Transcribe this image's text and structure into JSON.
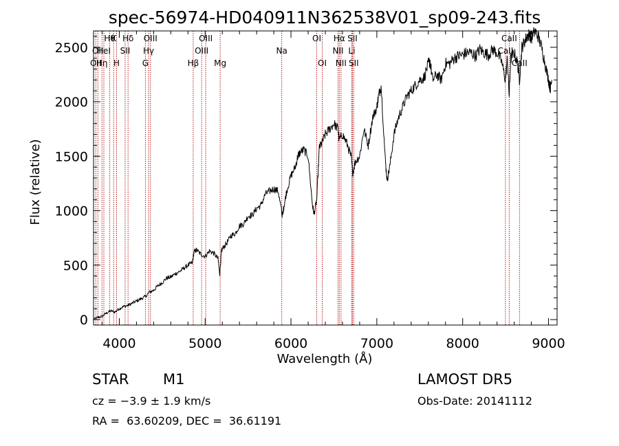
{
  "chart_data": {
    "type": "line",
    "title": "spec-56974-HD040911N362538V01_sp09-243.fits",
    "xlabel": "Wavelength (Å)",
    "ylabel": "Flux (relative)",
    "xlim": [
      3700,
      9100
    ],
    "ylim": [
      -50,
      2650
    ],
    "xticks": [
      4000,
      5000,
      6000,
      7000,
      8000,
      9000
    ],
    "yticks": [
      0,
      500,
      1000,
      1500,
      2000,
      2500
    ],
    "grid": false,
    "series": [
      {
        "x": [
          3700,
          3750,
          3800,
          3850,
          3900,
          3950,
          4000,
          4050,
          4100,
          4150,
          4200,
          4250,
          4300,
          4350,
          4400,
          4450,
          4500,
          4550,
          4600,
          4650,
          4700,
          4750,
          4800,
          4850,
          4870,
          4900,
          4950,
          5000,
          5050,
          5100,
          5150,
          5170,
          5190,
          5200,
          5250,
          5300,
          5350,
          5400,
          5450,
          5500,
          5550,
          5600,
          5650,
          5700,
          5750,
          5800,
          5850,
          5890,
          5900,
          5920,
          5950,
          6000,
          6050,
          6080,
          6100,
          6150,
          6200,
          6250,
          6270,
          6300,
          6330,
          6360,
          6400,
          6450,
          6500,
          6550,
          6560,
          6600,
          6650,
          6700,
          6720,
          6750,
          6800,
          6850,
          6900,
          6950,
          7000,
          7020,
          7050,
          7100,
          7120,
          7150,
          7200,
          7250,
          7300,
          7350,
          7400,
          7450,
          7500,
          7550,
          7600,
          7620,
          7650,
          7700,
          7750,
          7800,
          7850,
          7900,
          7950,
          8000,
          8050,
          8100,
          8150,
          8200,
          8250,
          8300,
          8350,
          8400,
          8450,
          8498,
          8520,
          8542,
          8560,
          8600,
          8640,
          8662,
          8690,
          8720,
          8750,
          8780,
          8800,
          8840,
          8880,
          8920,
          8960,
          9000,
          9020,
          9040
        ],
        "y": [
          0,
          20,
          30,
          60,
          80,
          70,
          100,
          120,
          130,
          150,
          170,
          190,
          210,
          250,
          270,
          310,
          340,
          380,
          390,
          420,
          440,
          470,
          500,
          520,
          620,
          640,
          600,
          580,
          630,
          610,
          560,
          420,
          620,
          650,
          700,
          770,
          790,
          860,
          880,
          950,
          960,
          1020,
          1050,
          1150,
          1180,
          1200,
          1180,
          1000,
          950,
          1050,
          1180,
          1320,
          1400,
          1500,
          1530,
          1560,
          1500,
          1050,
          970,
          1100,
          1580,
          1620,
          1700,
          1750,
          1800,
          1750,
          1650,
          1700,
          1620,
          1500,
          1350,
          1450,
          1500,
          1750,
          1600,
          1850,
          1950,
          2050,
          2150,
          1450,
          1280,
          1400,
          1700,
          1850,
          1950,
          2050,
          2100,
          2150,
          2200,
          2220,
          2350,
          2370,
          2200,
          2250,
          2200,
          2350,
          2350,
          2400,
          2420,
          2430,
          2450,
          2450,
          2420,
          2480,
          2450,
          2430,
          2480,
          2450,
          2380,
          2200,
          2400,
          2050,
          2400,
          2450,
          2350,
          2200,
          2500,
          2550,
          2600,
          2620,
          2580,
          2650,
          2600,
          2500,
          2350,
          2200,
          2120,
          2200
        ]
      }
    ],
    "lines": [
      {
        "x": 3726,
        "label": "OII",
        "row": 2
      },
      {
        "x": 3750,
        "label": "OII",
        "row": 1
      },
      {
        "x": 3798,
        "label": "Hη",
        "row": 2
      },
      {
        "x": 3820,
        "label": "HeI",
        "row": 1
      },
      {
        "x": 3889,
        "label": "Hθ",
        "row": 0
      },
      {
        "x": 3934,
        "label": "K",
        "row": 0
      },
      {
        "x": 3969,
        "label": "H",
        "row": 2
      },
      {
        "x": 4068,
        "label": "SII",
        "row": 1
      },
      {
        "x": 4102,
        "label": "Hδ",
        "row": 0
      },
      {
        "x": 4304,
        "label": "G",
        "row": 2
      },
      {
        "x": 4341,
        "label": "Hγ",
        "row": 1
      },
      {
        "x": 4363,
        "label": "OIII",
        "row": 0
      },
      {
        "x": 4861,
        "label": "Hβ",
        "row": 2
      },
      {
        "x": 4959,
        "label": "OIII",
        "row": 1
      },
      {
        "x": 5007,
        "label": "OIII",
        "row": 0
      },
      {
        "x": 5175,
        "label": "Mg",
        "row": 2
      },
      {
        "x": 5893,
        "label": "Na",
        "row": 1
      },
      {
        "x": 6300,
        "label": "OI",
        "row": 0
      },
      {
        "x": 6364,
        "label": "OI",
        "row": 2
      },
      {
        "x": 6548,
        "label": "NII",
        "row": 1
      },
      {
        "x": 6563,
        "label": "Hα",
        "row": 0
      },
      {
        "x": 6583,
        "label": "NII",
        "row": 2
      },
      {
        "x": 6708,
        "label": "Li",
        "row": 1
      },
      {
        "x": 6716,
        "label": "SII",
        "row": 0
      },
      {
        "x": 6731,
        "label": "SII",
        "row": 2
      },
      {
        "x": 8498,
        "label": "CaII",
        "row": 1
      },
      {
        "x": 8542,
        "label": "CaII",
        "row": 0
      },
      {
        "x": 8662,
        "label": "CaII",
        "row": 2
      }
    ]
  },
  "footer": {
    "object_type": "STAR",
    "subclass": "M1",
    "survey": "LAMOST DR5",
    "cz": "cz = −3.9 ± 1.9 km/s",
    "obs_date": "Obs-Date: 20141112",
    "coords": "RA =  63.60209, DEC =  36.61191"
  },
  "colors": {
    "line_marker": "#b00000",
    "spectrum": "#000000"
  }
}
